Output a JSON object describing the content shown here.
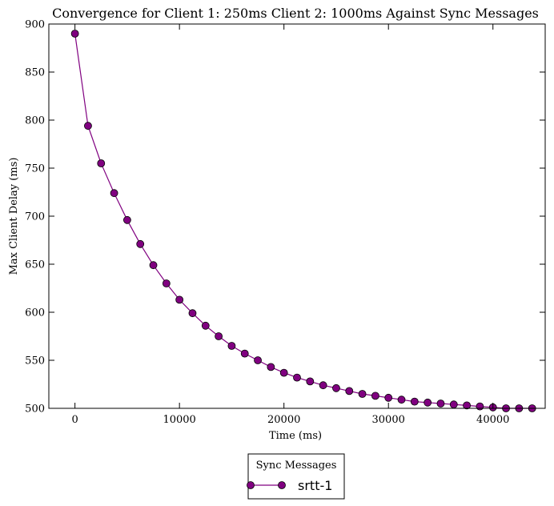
{
  "chart_data": {
    "type": "line",
    "title": "Convergence for Client 1: 250ms Client 2: 1000ms Against Sync Messages",
    "xlabel": "Time (ms)",
    "ylabel": "Max Client Delay (ms)",
    "xlim": [
      -2500,
      45000
    ],
    "ylim": [
      500,
      900
    ],
    "x_ticks": [
      0,
      10000,
      20000,
      30000,
      40000
    ],
    "y_ticks": [
      500,
      550,
      600,
      650,
      700,
      750,
      800,
      850,
      900
    ],
    "grid": false,
    "legend": {
      "title": "Sync Messages",
      "placement": "bottom-center, outside plot",
      "entries": [
        "srtt-1"
      ]
    },
    "series": [
      {
        "name": "srtt-1",
        "color": "#800080",
        "marker": "circle",
        "x": [
          0,
          1250,
          2500,
          3750,
          5000,
          6250,
          7500,
          8750,
          10000,
          11250,
          12500,
          13750,
          15000,
          16250,
          17500,
          18750,
          20000,
          21250,
          22500,
          23750,
          25000,
          26250,
          27500,
          28750,
          30000,
          31250,
          32500,
          33750,
          35000,
          36250,
          37500,
          38750,
          40000,
          41250,
          42500,
          43750
        ],
        "y": [
          890,
          794,
          755,
          724,
          696,
          671,
          649,
          630,
          613,
          599,
          586,
          575,
          565,
          557,
          550,
          543,
          537,
          532,
          528,
          524,
          521,
          518,
          515,
          513,
          511,
          509,
          507,
          506,
          505,
          504,
          503,
          502,
          501,
          500,
          500,
          500
        ]
      }
    ]
  }
}
